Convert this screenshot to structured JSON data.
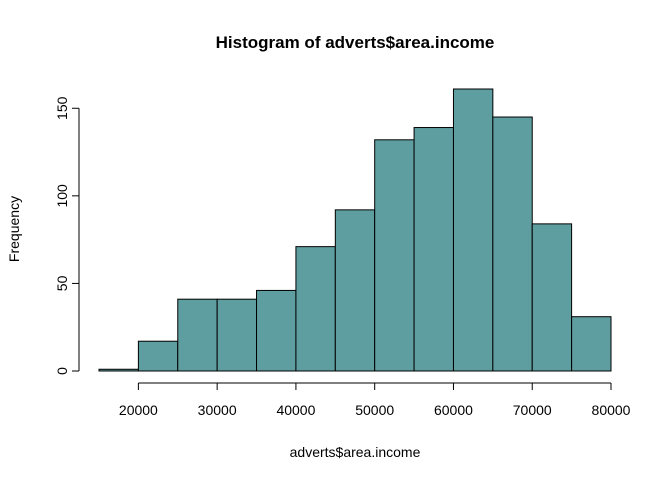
{
  "chart_data": {
    "type": "bar",
    "title": "Histogram of adverts$area.income",
    "xlabel": "adverts$area.income",
    "ylabel": "Frequency",
    "bin_edges": [
      15000,
      20000,
      25000,
      30000,
      35000,
      40000,
      45000,
      50000,
      55000,
      60000,
      65000,
      70000,
      75000,
      80000
    ],
    "values": [
      1,
      17,
      41,
      41,
      46,
      71,
      92,
      132,
      139,
      161,
      145,
      84,
      31
    ],
    "xticks": [
      20000,
      30000,
      40000,
      50000,
      60000,
      70000,
      80000
    ],
    "yticks": [
      0,
      50,
      100,
      150
    ],
    "ylim": [
      0,
      161
    ],
    "bar_color": "#5f9ea0",
    "grid": false,
    "legend": "none"
  }
}
